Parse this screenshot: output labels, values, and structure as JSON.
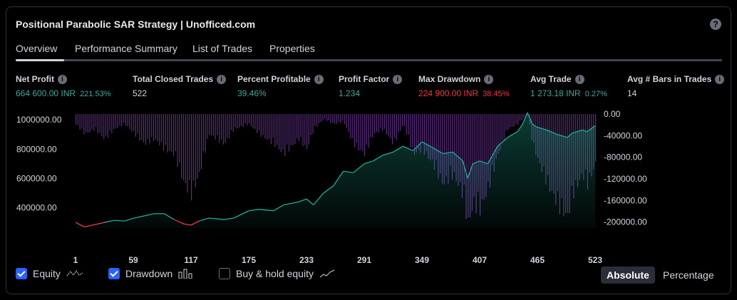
{
  "header": {
    "title": "Positional Parabolic SAR Strategy | Unofficed.com",
    "help_glyph": "?"
  },
  "tabs": [
    {
      "label": "Overview",
      "active": true
    },
    {
      "label": "Performance Summary"
    },
    {
      "label": "List of Trades"
    },
    {
      "label": "Properties"
    }
  ],
  "metrics": [
    {
      "label": "Net Profit",
      "value": "664 600.00 INR",
      "pct": "221.53%",
      "color": "green"
    },
    {
      "label": "Total Closed Trades",
      "value": "522",
      "color": "white"
    },
    {
      "label": "Percent Profitable",
      "value": "39.46%",
      "color": "green"
    },
    {
      "label": "Profit Factor",
      "value": "1.234",
      "color": "green"
    },
    {
      "label": "Max Drawdown",
      "value": "224 900.00 INR",
      "pct": "38.45%",
      "color": "red"
    },
    {
      "label": "Avg Trade",
      "value": "1 273.18 INR",
      "pct": "0.27%",
      "color": "green"
    },
    {
      "label": "Avg # Bars in Trades",
      "value": "14",
      "color": "white"
    }
  ],
  "chart_data": {
    "type": "area",
    "x_ticks": [
      "1",
      "59",
      "117",
      "175",
      "233",
      "291",
      "349",
      "407",
      "465",
      "523"
    ],
    "y_left_ticks": [
      "1000000.00",
      "800000.00",
      "600000.00",
      "400000.00"
    ],
    "y_right_ticks": [
      "0.00",
      "-40000.00",
      "-80000.00",
      "-120000.00",
      "-160000.00",
      "-200000.00"
    ],
    "y_left_range": [
      262000,
      1040000
    ],
    "y_right_range": [
      -211000,
      0
    ],
    "x_range": [
      1,
      523
    ],
    "equity": [
      [
        1,
        300000
      ],
      [
        10,
        270000
      ],
      [
        20,
        285000
      ],
      [
        30,
        300000
      ],
      [
        40,
        315000
      ],
      [
        50,
        310000
      ],
      [
        60,
        330000
      ],
      [
        70,
        345000
      ],
      [
        80,
        360000
      ],
      [
        90,
        360000
      ],
      [
        100,
        320000
      ],
      [
        110,
        290000
      ],
      [
        117,
        282000
      ],
      [
        125,
        310000
      ],
      [
        135,
        330000
      ],
      [
        150,
        320000
      ],
      [
        160,
        330000
      ],
      [
        175,
        380000
      ],
      [
        185,
        390000
      ],
      [
        200,
        380000
      ],
      [
        210,
        420000
      ],
      [
        225,
        440000
      ],
      [
        233,
        460000
      ],
      [
        240,
        420000
      ],
      [
        250,
        500000
      ],
      [
        260,
        550000
      ],
      [
        270,
        650000
      ],
      [
        280,
        640000
      ],
      [
        291,
        700000
      ],
      [
        300,
        720000
      ],
      [
        310,
        760000
      ],
      [
        320,
        780000
      ],
      [
        330,
        820000
      ],
      [
        340,
        790000
      ],
      [
        349,
        850000
      ],
      [
        360,
        810000
      ],
      [
        370,
        770000
      ],
      [
        380,
        780000
      ],
      [
        390,
        720000
      ],
      [
        395,
        600000
      ],
      [
        400,
        700000
      ],
      [
        407,
        720000
      ],
      [
        415,
        700000
      ],
      [
        425,
        820000
      ],
      [
        435,
        880000
      ],
      [
        445,
        920000
      ],
      [
        450,
        970000
      ],
      [
        455,
        1050000
      ],
      [
        460,
        970000
      ],
      [
        465,
        950000
      ],
      [
        475,
        930000
      ],
      [
        485,
        900000
      ],
      [
        495,
        880000
      ],
      [
        500,
        910000
      ],
      [
        510,
        930000
      ],
      [
        515,
        920000
      ],
      [
        523,
        960000
      ]
    ],
    "drawdown": [
      [
        1,
        -20000
      ],
      [
        10,
        -40000
      ],
      [
        20,
        -30000
      ],
      [
        30,
        -50000
      ],
      [
        40,
        -30000
      ],
      [
        50,
        -20000
      ],
      [
        60,
        -40000
      ],
      [
        70,
        -60000
      ],
      [
        80,
        -50000
      ],
      [
        90,
        -70000
      ],
      [
        100,
        -80000
      ],
      [
        110,
        -140000
      ],
      [
        117,
        -160000
      ],
      [
        125,
        -120000
      ],
      [
        135,
        -40000
      ],
      [
        150,
        -60000
      ],
      [
        160,
        -30000
      ],
      [
        175,
        -20000
      ],
      [
        185,
        -40000
      ],
      [
        200,
        -60000
      ],
      [
        210,
        -80000
      ],
      [
        225,
        -50000
      ],
      [
        233,
        -70000
      ],
      [
        240,
        -30000
      ],
      [
        250,
        -10000
      ],
      [
        260,
        -20000
      ],
      [
        270,
        -15000
      ],
      [
        280,
        -60000
      ],
      [
        291,
        -80000
      ],
      [
        300,
        -40000
      ],
      [
        310,
        -30000
      ],
      [
        320,
        -60000
      ],
      [
        330,
        -20000
      ],
      [
        340,
        -80000
      ],
      [
        349,
        -70000
      ],
      [
        360,
        -100000
      ],
      [
        370,
        -140000
      ],
      [
        380,
        -120000
      ],
      [
        390,
        -160000
      ],
      [
        395,
        -220000
      ],
      [
        400,
        -180000
      ],
      [
        407,
        -190000
      ],
      [
        415,
        -150000
      ],
      [
        425,
        -80000
      ],
      [
        435,
        -30000
      ],
      [
        445,
        -20000
      ],
      [
        450,
        -10000
      ],
      [
        455,
        0
      ],
      [
        460,
        -60000
      ],
      [
        465,
        -90000
      ],
      [
        475,
        -140000
      ],
      [
        485,
        -180000
      ],
      [
        495,
        -205000
      ],
      [
        500,
        -160000
      ],
      [
        510,
        -120000
      ],
      [
        515,
        -140000
      ],
      [
        523,
        -100000
      ]
    ],
    "colors": {
      "equity_up": "#22ab94",
      "equity_down": "#f23645",
      "drawdown": "#7b3fa8"
    }
  },
  "legend": [
    {
      "label": "Equity",
      "checked": true
    },
    {
      "label": "Drawdown",
      "checked": true
    },
    {
      "label": "Buy & hold equity",
      "checked": false
    }
  ],
  "mode": {
    "absolute": "Absolute",
    "percentage": "Percentage",
    "selected": "absolute"
  }
}
